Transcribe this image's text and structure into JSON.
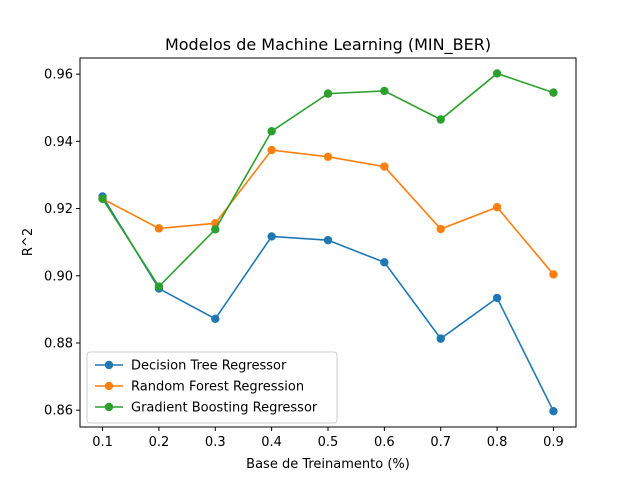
{
  "chart_data": {
    "type": "line",
    "title": "Modelos de Machine Learning (MIN_BER)",
    "xlabel": "Base de Treinamento (%)",
    "ylabel": "R^2",
    "x": [
      0.1,
      0.2,
      0.3,
      0.4,
      0.5,
      0.6,
      0.7,
      0.8,
      0.9
    ],
    "x_tick_labels": [
      "0.1",
      "0.2",
      "0.3",
      "0.4",
      "0.5",
      "0.6",
      "0.7",
      "0.8",
      "0.9"
    ],
    "y_ticks": [
      0.86,
      0.88,
      0.9,
      0.92,
      0.94,
      0.96
    ],
    "y_tick_labels": [
      "0.86",
      "0.88",
      "0.90",
      "0.92",
      "0.94",
      "0.96"
    ],
    "xlim": [
      0.06,
      0.94
    ],
    "ylim": [
      0.855,
      0.9648
    ],
    "grid": false,
    "legend_position": "lower-left",
    "series": [
      {
        "name": "Decision Tree Regressor",
        "color": "#1f77b4",
        "values": [
          0.9236,
          0.8962,
          0.8872,
          0.9117,
          0.9106,
          0.904,
          0.8813,
          0.8934,
          0.8597
        ]
      },
      {
        "name": "Random Forest Regression",
        "color": "#ff7f0e",
        "values": [
          0.9229,
          0.9141,
          0.9156,
          0.9374,
          0.9354,
          0.9325,
          0.9139,
          0.9204,
          0.9004
        ]
      },
      {
        "name": "Gradient Boosting Regressor",
        "color": "#2ca02c",
        "values": [
          0.9229,
          0.8968,
          0.9138,
          0.943,
          0.9542,
          0.955,
          0.9465,
          0.9602,
          0.9545
        ]
      }
    ]
  }
}
